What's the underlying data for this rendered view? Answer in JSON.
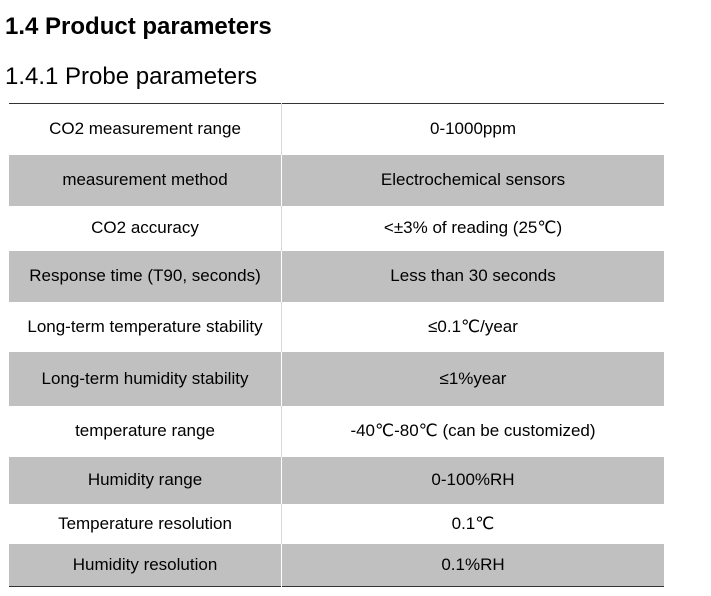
{
  "section_heading": "1.4 Product parameters",
  "subsection_heading": "1.4.1 Probe parameters",
  "row_shading": [
    "white",
    "grey",
    "white",
    "grey",
    "white",
    "grey",
    "white",
    "grey",
    "white",
    "grey"
  ],
  "table_rows": [
    {
      "name": "CO2 measurement range",
      "value": "0-1000ppm"
    },
    {
      "name": "measurement method",
      "value": "Electrochemical sensors"
    },
    {
      "name": "CO2 accuracy",
      "value": "<±3% of reading (25℃)"
    },
    {
      "name": "Response time (T90, seconds)",
      "value": "Less than 30 seconds"
    },
    {
      "name": "Long-term temperature stability",
      "value": "≤0.1℃/year"
    },
    {
      "name": "Long-term humidity stability",
      "value": "≤1%year"
    },
    {
      "name": "temperature range",
      "value": "-40℃-80℃  (can be customized)"
    },
    {
      "name": "Humidity range",
      "value": "0-100%RH"
    },
    {
      "name": "Temperature resolution",
      "value": "0.1℃"
    },
    {
      "name": "Humidity resolution",
      "value": "0.1%RH"
    }
  ]
}
